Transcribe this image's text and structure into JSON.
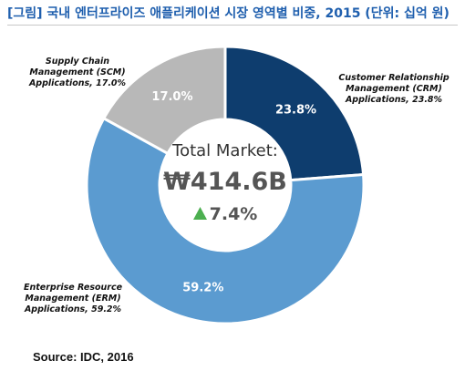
{
  "title": "[그림] 국내 엔터프라이즈 애플리케이션 시장 영역별 비중, 2015 (단위: 십억 원)",
  "source": "Source: IDC, 2016",
  "center": {
    "label": "Total Market:",
    "total": "₩414.6B",
    "growth": "7.4%",
    "growth_icon": "up-triangle-icon"
  },
  "colors": {
    "title": "#1f5fae",
    "crm": "#0e3d6e",
    "erp": "#5b9bd0",
    "scm": "#b8b8b8",
    "growth_arrow": "#4caf50"
  },
  "chart_data": {
    "type": "pie",
    "donut": true,
    "title": "[그림] 국내 엔터프라이즈 애플리케이션 시장 영역별 비중, 2015 (단위: 십억 원)",
    "slices": [
      {
        "key": "crm",
        "value": 23.8,
        "value_label": "23.8%",
        "label_lines": [
          "Customer Relationship",
          "Management (CRM)",
          "Applications, 23.8%"
        ]
      },
      {
        "key": "erp",
        "value": 59.2,
        "value_label": "59.2%",
        "label_lines": [
          "Enterprise Resource",
          "Management (ERM)",
          "Applications, 59.2%"
        ]
      },
      {
        "key": "scm",
        "value": 17.0,
        "value_label": "17.0%",
        "label_lines": [
          "Supply Chain",
          "Management (SCM)",
          "Applications, 17.0%"
        ]
      }
    ]
  }
}
